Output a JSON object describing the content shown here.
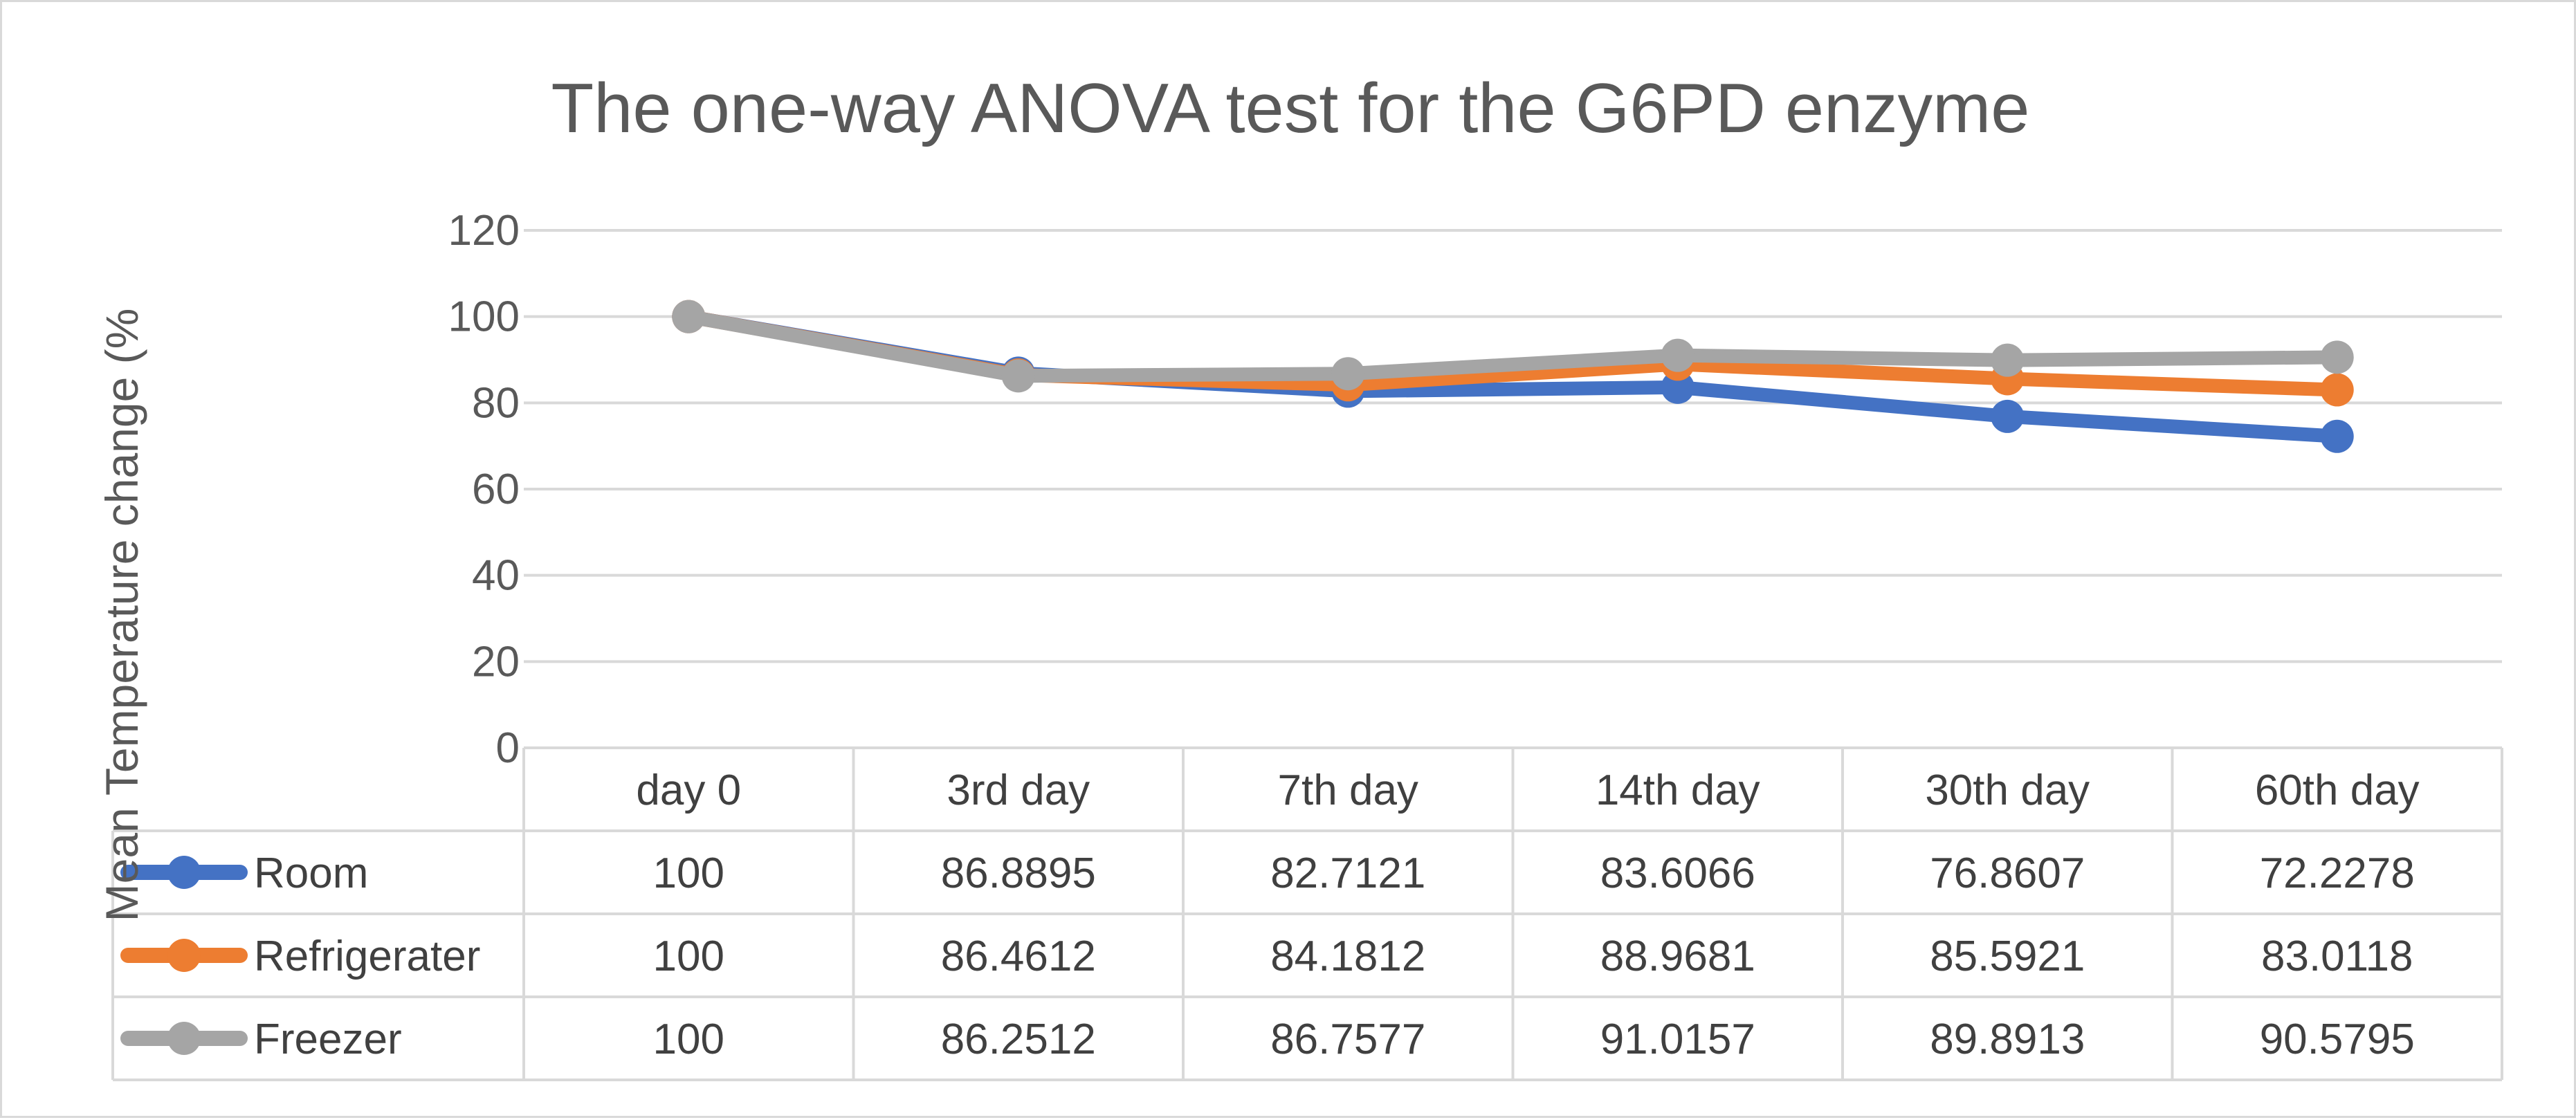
{
  "chart_data": {
    "type": "line",
    "title": "The one-way ANOVA test for the G6PD enzyme",
    "xlabel": "",
    "ylabel": "Mean Temperature change (%",
    "ylim": [
      0,
      120
    ],
    "yticks": [
      0,
      20,
      40,
      60,
      80,
      100,
      120
    ],
    "grid": true,
    "legend": "data-table-left",
    "categories": [
      "day 0",
      "3rd day",
      "7th day",
      "14th day",
      "30th day",
      "60th day"
    ],
    "series": [
      {
        "name": "Room",
        "color": "#4472c4",
        "values": [
          100,
          86.8895,
          82.7121,
          83.6066,
          76.8607,
          72.2278
        ],
        "labels": [
          "100",
          "86.8895",
          "82.7121",
          "83.6066",
          "76.8607",
          "72.2278"
        ]
      },
      {
        "name": "Refrigerater",
        "color": "#ed7d31",
        "values": [
          100,
          86.4612,
          84.1812,
          88.9681,
          85.5921,
          83.0118
        ],
        "labels": [
          "100",
          "86.4612",
          "84.1812",
          "88.9681",
          "85.5921",
          "83.0118"
        ]
      },
      {
        "name": "Freezer",
        "color": "#a5a5a5",
        "values": [
          100,
          86.2512,
          86.7577,
          91.0157,
          89.8913,
          90.5795
        ],
        "labels": [
          "100",
          "86.2512",
          "86.7577",
          "91.0157",
          "89.8913",
          "90.5795"
        ]
      }
    ]
  }
}
